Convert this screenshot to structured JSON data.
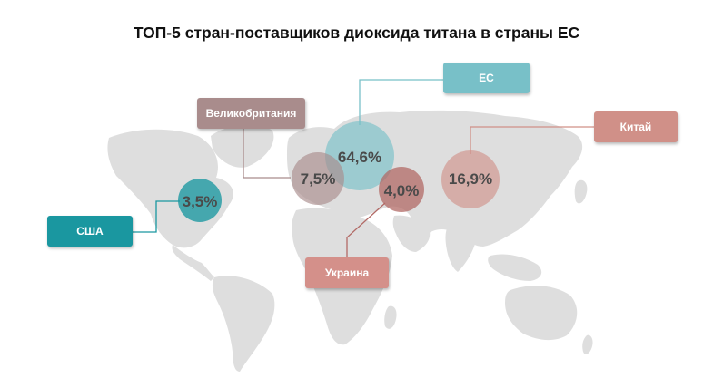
{
  "title": "ТОП-5 стран-поставщиков диоксида титана в страны ЕС",
  "colors": {
    "map": "#dedede",
    "eu": "#78c0c8",
    "usa": "#1a97a0",
    "uk": "#a98c8c",
    "china": "#d09088",
    "ukraine": "#d4908a",
    "ukraine_bubble": "#b26a66"
  },
  "countries": [
    {
      "id": "eu",
      "label": "ЕС",
      "value": "64,6%"
    },
    {
      "id": "china",
      "label": "Китай",
      "value": "16,9%"
    },
    {
      "id": "uk",
      "label": "Великобритания",
      "value": "7,5%"
    },
    {
      "id": "ukraine",
      "label": "Украина",
      "value": "4,0%"
    },
    {
      "id": "usa",
      "label": "США",
      "value": "3,5%"
    }
  ]
}
